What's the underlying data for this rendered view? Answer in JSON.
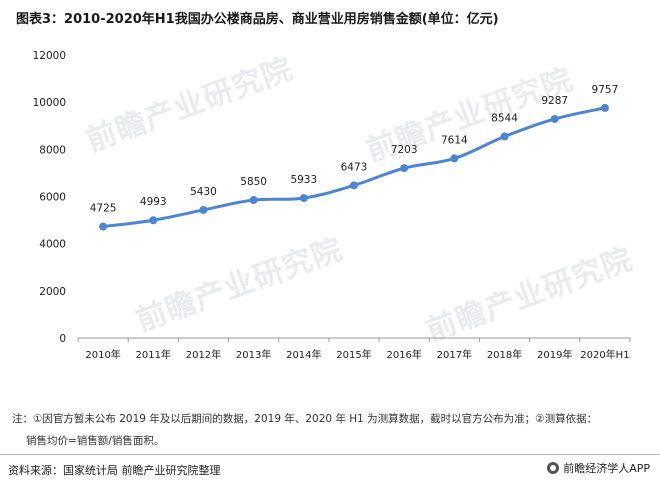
{
  "page": {
    "title": "图表3：2010-2020年H1我国办公楼商品房、商业营业用房销售金额(单位：亿元)",
    "watermark": "前瞻产业研究院",
    "note_line1": "注：①因官方暂未公布 2019 年及以后期间的数据，2019 年、2020 年 H1 为测算数据，截时以官方公布为准；②测算依据：",
    "note_line2": "销售均价=销售额/销售面积。",
    "source": "资料来源：国家统计局 前瞻产业研究院整理",
    "brand": "前瞻经济学人APP"
  },
  "colors": {
    "line": "#4a86d6",
    "axis": "#999999",
    "text": "#222222"
  },
  "chart_data": {
    "type": "line",
    "title": "",
    "xlabel": "",
    "ylabel": "",
    "categories": [
      "2010年",
      "2011年",
      "2012年",
      "2013年",
      "2014年",
      "2015年",
      "2016年",
      "2017年",
      "2018年",
      "2019年",
      "2020年H1"
    ],
    "series": [
      {
        "values": [
          4725,
          4993,
          5430,
          5850,
          5933,
          6473,
          7203,
          7614,
          8544,
          9287,
          9757
        ]
      }
    ],
    "ylim": [
      0,
      12000
    ],
    "yticks": [
      0,
      2000,
      4000,
      6000,
      8000,
      10000,
      12000
    ],
    "grid": false,
    "legend": "none",
    "data_labels": true
  }
}
